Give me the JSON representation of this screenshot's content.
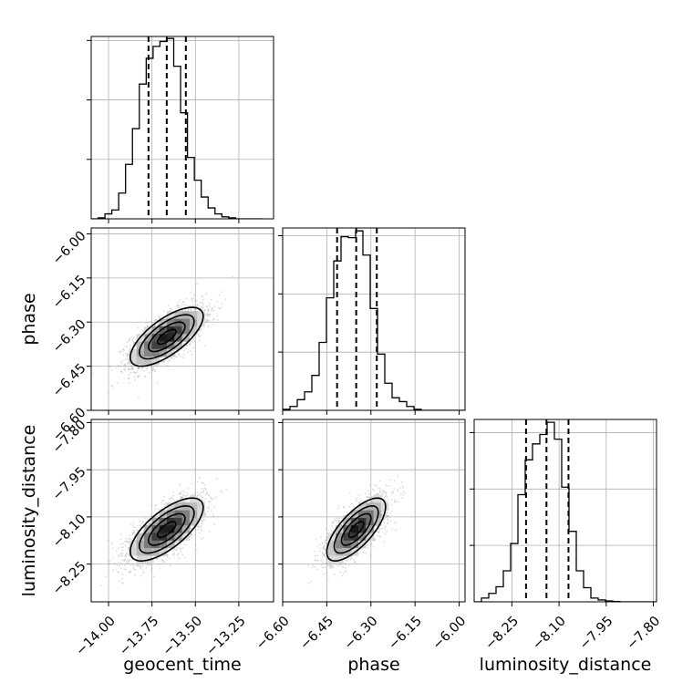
{
  "chart_data": {
    "type": "corner",
    "parameters": [
      {
        "key": "geocent_time",
        "label": "geocent_time",
        "range": [
          -14.1,
          -13.05
        ],
        "ticks": [
          -14.0,
          -13.75,
          -13.5,
          -13.25
        ],
        "tick_labels": [
          "−14.00",
          "−13.75",
          "−13.50",
          "−13.25"
        ],
        "quantiles": [
          -13.77,
          -13.665,
          -13.555
        ],
        "hist_x0": -14.1,
        "hist_bin": 0.0396,
        "hist_counts": [
          0,
          0.5,
          2.5,
          4.5,
          13,
          27.5,
          45.5,
          68,
          81,
          87,
          89.5,
          91,
          77,
          53.5,
          31,
          19.5,
          11,
          5.5,
          2.5,
          1,
          0.5,
          0,
          0,
          0,
          0
        ],
        "hist_ylim": [
          0,
          92
        ],
        "hist_ticks": [
          30,
          60,
          90
        ]
      },
      {
        "key": "phase",
        "label": "phase",
        "range": [
          -6.6,
          -5.98
        ],
        "ticks": [
          -6.6,
          -6.45,
          -6.3,
          -6.15,
          -6.0
        ],
        "tick_labels": [
          "−6.60",
          "−6.45",
          "−6.30",
          "−6.15",
          "−6.00"
        ],
        "quantiles": [
          -6.415,
          -6.35,
          -6.28
        ],
        "hist_x0": -6.6,
        "hist_bin": 0.0248,
        "hist_counts": [
          0.5,
          2,
          5.5,
          9.5,
          18,
          35,
          58,
          77,
          89.5,
          89,
          92.5,
          80,
          52.5,
          29,
          14,
          6.5,
          4.5,
          2,
          0.5,
          0,
          0,
          0,
          0,
          0,
          0
        ],
        "hist_ylim": [
          0,
          94
        ],
        "hist_ticks": [
          30,
          60,
          90
        ]
      },
      {
        "key": "luminosity_distance",
        "label": "luminosity_distance",
        "range": [
          -8.37,
          -7.79
        ],
        "ticks": [
          -8.25,
          -8.1,
          -7.95,
          -7.8
        ],
        "tick_labels": [
          "−8.25",
          "−8.10",
          "−7.95",
          "−7.80"
        ],
        "quantiles": [
          -8.205,
          -8.14,
          -8.07
        ],
        "hist_x0": -8.37,
        "hist_bin": 0.0232,
        "hist_counts": [
          0,
          2,
          4.5,
          8,
          16.5,
          31,
          57,
          75.5,
          84,
          89,
          95.5,
          86.5,
          61,
          37.5,
          16.5,
          7.5,
          2,
          1,
          0.5,
          0.2,
          0,
          0,
          0,
          0,
          0
        ],
        "hist_ylim": [
          0,
          97
        ],
        "hist_ticks": [
          30,
          60,
          90
        ]
      }
    ],
    "pairs": [
      {
        "x": "geocent_time",
        "y": "phase",
        "center": [
          -13.665,
          -6.35
        ],
        "sigma": [
          0.105,
          0.05
        ],
        "rho": 0.7
      },
      {
        "x": "geocent_time",
        "y": "luminosity_distance",
        "center": [
          -13.665,
          -8.14
        ],
        "sigma": [
          0.105,
          0.05
        ],
        "rho": 0.7
      },
      {
        "x": "phase",
        "y": "luminosity_distance",
        "center": [
          -6.35,
          -8.14
        ],
        "sigma": [
          0.05,
          0.05
        ],
        "rho": 0.72
      }
    ],
    "contour_levels": [
      "0.5σ",
      "1σ",
      "1.5σ",
      "2σ"
    ],
    "grid": true,
    "quantile_lines": "dashed"
  }
}
